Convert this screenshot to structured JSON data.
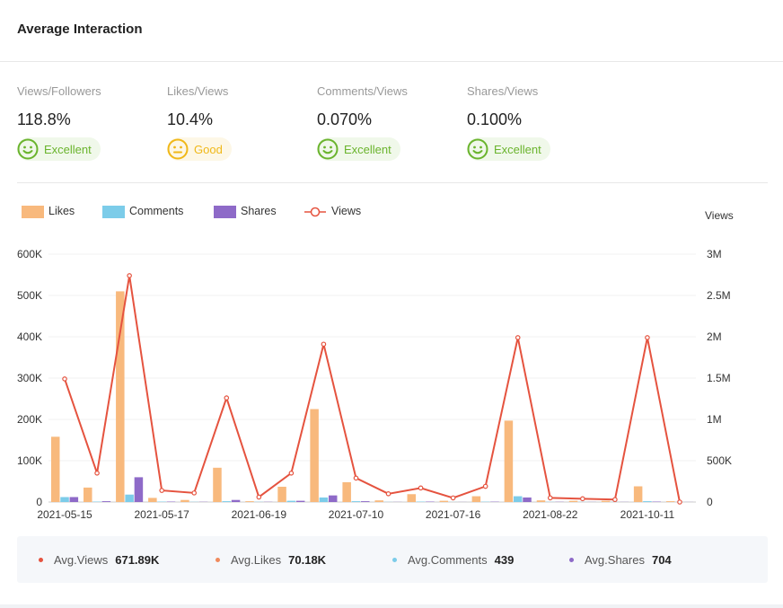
{
  "header": {
    "title": "Average Interaction"
  },
  "metrics": [
    {
      "label": "Views/Followers",
      "value": "118.8%",
      "rating": "Excellent",
      "tone": "excellent"
    },
    {
      "label": "Likes/Views",
      "value": "10.4%",
      "rating": "Good",
      "tone": "good"
    },
    {
      "label": "Comments/Views",
      "value": "0.070%",
      "rating": "Excellent",
      "tone": "excellent"
    },
    {
      "label": "Shares/Views",
      "value": "0.100%",
      "rating": "Excellent",
      "tone": "excellent"
    }
  ],
  "colors": {
    "likes": "#f8b97d",
    "comments": "#7ccce9",
    "shares": "#8e6ac8",
    "views": "#e5533f",
    "excellent": "#6ab42d",
    "good": "#f0b818"
  },
  "chart_data": {
    "type": "bar",
    "legend": [
      "Likes",
      "Comments",
      "Shares",
      "Views"
    ],
    "right_axis_title": "Views",
    "x_tick_labels": [
      "2021-05-15",
      "2021-05-17",
      "2021-06-19",
      "2021-07-10",
      "2021-07-16",
      "2021-08-22",
      "2021-10-11"
    ],
    "y_left": {
      "min": 0,
      "max": 600000,
      "ticks": [
        "0",
        "100K",
        "200K",
        "300K",
        "400K",
        "500K",
        "600K"
      ]
    },
    "y_right": {
      "min": 0,
      "max": 3000000,
      "ticks": [
        "0",
        "500K",
        "1M",
        "1.5M",
        "2M",
        "2.5M",
        "3M"
      ]
    },
    "series": [
      {
        "name": "Likes",
        "axis": "left",
        "kind": "bar",
        "values": [
          158000,
          35000,
          510000,
          10000,
          5000,
          83000,
          2000,
          37000,
          225000,
          48000,
          4000,
          19000,
          3000,
          14000,
          197000,
          4000,
          3000,
          3000,
          38000,
          2000
        ]
      },
      {
        "name": "Comments",
        "axis": "left",
        "kind": "bar",
        "values": [
          12000,
          1000,
          18000,
          1000,
          500,
          2000,
          500,
          3000,
          11000,
          2000,
          300,
          1000,
          200,
          800,
          14000,
          500,
          300,
          300,
          2000,
          200
        ]
      },
      {
        "name": "Shares",
        "axis": "left",
        "kind": "bar",
        "values": [
          12000,
          2000,
          60000,
          1000,
          500,
          5000,
          500,
          3000,
          16000,
          2000,
          300,
          1000,
          200,
          800,
          11000,
          500,
          300,
          300,
          1000,
          200
        ]
      },
      {
        "name": "Views",
        "axis": "right",
        "kind": "line",
        "values": [
          1490000,
          350000,
          2740000,
          140000,
          110000,
          1260000,
          60000,
          350000,
          1910000,
          290000,
          100000,
          170000,
          50000,
          190000,
          1990000,
          50000,
          40000,
          30000,
          1990000,
          0
        ]
      }
    ]
  },
  "summary": [
    {
      "label": "Avg.Views",
      "value": "671.89K",
      "color": "#e5533f"
    },
    {
      "label": "Avg.Likes",
      "value": "70.18K",
      "color": "#f08a5d"
    },
    {
      "label": "Avg.Comments",
      "value": "439",
      "color": "#7ccce9"
    },
    {
      "label": "Avg.Shares",
      "value": "704",
      "color": "#8e6ac8"
    }
  ]
}
